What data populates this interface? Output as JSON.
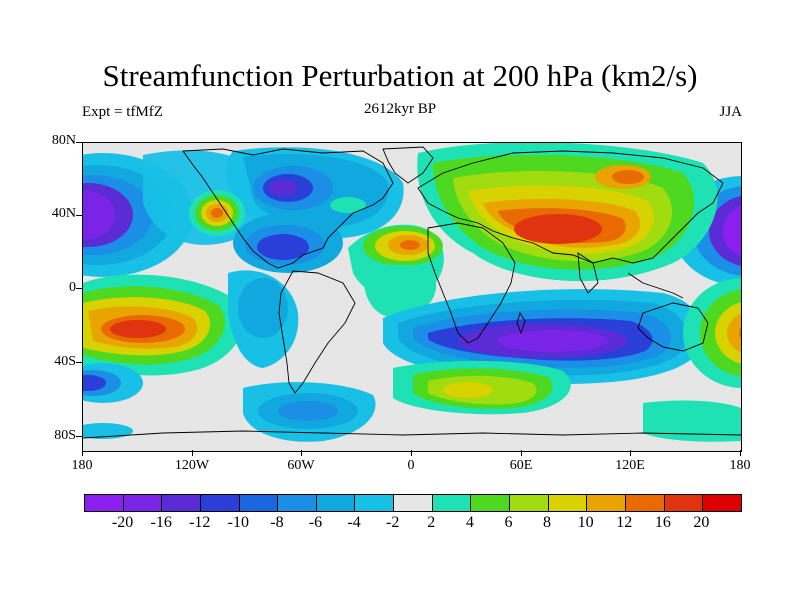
{
  "title": "Streamfunction Perturbation at 200 hPa (km2/s)",
  "experiment": "Expt = tfMfZ",
  "period": "2612kyr BP",
  "season": "JJA",
  "y_axis_labels": [
    "80N",
    "40N",
    "0",
    "40S",
    "80S"
  ],
  "x_axis_labels": [
    "180",
    "120W",
    "60W",
    "0",
    "60E",
    "120E",
    "180"
  ],
  "colorbar": {
    "colors": [
      "#8a1ff0",
      "#7a24e8",
      "#5b2cd6",
      "#2a3ed8",
      "#1a66e0",
      "#1b8ee6",
      "#10a8df",
      "#18c0e6",
      "#e6e6e6",
      "#1ee2b4",
      "#4ed820",
      "#a0dc10",
      "#d8d200",
      "#eaa400",
      "#e86a00",
      "#e03410",
      "#dc0000"
    ],
    "labels": [
      "-20",
      "-16",
      "-12",
      "-10",
      "-8",
      "-6",
      "-4",
      "-2",
      "2",
      "4",
      "6",
      "8",
      "10",
      "12",
      "16",
      "20"
    ]
  },
  "palette": {
    "background": "#e6e6e6",
    "coast": "#000000"
  }
}
